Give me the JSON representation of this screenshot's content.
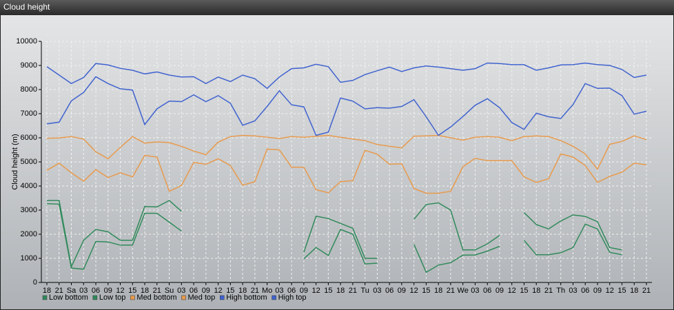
{
  "chart_data": {
    "type": "line",
    "title": "Cloud height",
    "ylabel": "Cloud height (m)",
    "categories": [
      "18",
      "21",
      "Sa",
      "03",
      "06",
      "09",
      "12",
      "15",
      "18",
      "21",
      "Su",
      "03",
      "06",
      "09",
      "12",
      "15",
      "18",
      "21",
      "Mo",
      "03",
      "06",
      "09",
      "12",
      "15",
      "18",
      "21",
      "Tu",
      "03",
      "06",
      "09",
      "12",
      "15",
      "18",
      "21",
      "We",
      "03",
      "06",
      "09",
      "12",
      "15",
      "18",
      "21",
      "Th",
      "03",
      "06",
      "09",
      "12",
      "15",
      "18",
      "21"
    ],
    "ylim": [
      0,
      10000
    ],
    "yticks": [
      0,
      1000,
      2000,
      3000,
      4000,
      5000,
      6000,
      7000,
      8000,
      9000,
      10000
    ],
    "grid": true,
    "legend": "bottom-left",
    "series": [
      {
        "name": "Low bottom",
        "color": "#2f8a5a",
        "values": [
          3270,
          3250,
          600,
          550,
          1700,
          1680,
          1550,
          1550,
          2870,
          2870,
          2500,
          2130,
          null,
          null,
          null,
          null,
          null,
          null,
          null,
          null,
          null,
          980,
          1450,
          1120,
          2200,
          2000,
          770,
          800,
          null,
          null,
          1580,
          420,
          720,
          820,
          1130,
          1140,
          1300,
          1500,
          null,
          1750,
          1150,
          1150,
          1230,
          1450,
          2420,
          2220,
          1250,
          1150,
          null,
          null
        ]
      },
      {
        "name": "Low top",
        "color": "#2f8a5a",
        "values": [
          3400,
          3400,
          650,
          1750,
          2200,
          2100,
          1750,
          1750,
          3150,
          3130,
          3400,
          2950,
          null,
          null,
          null,
          null,
          null,
          null,
          null,
          null,
          null,
          1250,
          2750,
          2650,
          2450,
          2250,
          1000,
          1000,
          null,
          null,
          2620,
          3230,
          3300,
          3000,
          1350,
          1350,
          1600,
          1950,
          null,
          2900,
          2400,
          2220,
          2550,
          2800,
          2740,
          2520,
          1450,
          1350,
          null,
          null
        ]
      },
      {
        "name": "Med bottom",
        "color": "#e89a4c",
        "values": [
          4650,
          4950,
          4550,
          4200,
          4680,
          4350,
          4550,
          4380,
          5270,
          5200,
          3780,
          4020,
          4980,
          4900,
          5130,
          4850,
          4030,
          4180,
          5530,
          5500,
          4780,
          4780,
          3850,
          3720,
          4180,
          4220,
          5480,
          5320,
          4900,
          4920,
          3900,
          3700,
          3700,
          3780,
          4800,
          5150,
          5050,
          5050,
          5050,
          4380,
          4150,
          4300,
          5330,
          5200,
          4850,
          4150,
          4400,
          4570,
          4950,
          4880
        ]
      },
      {
        "name": "Med top",
        "color": "#e89a4c",
        "values": [
          5980,
          5990,
          6050,
          5950,
          5420,
          5130,
          5600,
          6050,
          5780,
          5830,
          5800,
          5650,
          5450,
          5300,
          5820,
          6050,
          6100,
          6080,
          6020,
          5970,
          6050,
          6020,
          6060,
          6100,
          6020,
          5950,
          5880,
          5720,
          5650,
          5580,
          6070,
          6080,
          6100,
          6000,
          5900,
          6020,
          6050,
          6020,
          5880,
          6050,
          6080,
          6050,
          5880,
          5650,
          5330,
          4700,
          5730,
          5850,
          6080,
          5920
        ]
      },
      {
        "name": "High bottom",
        "color": "#3f62cf",
        "values": [
          6580,
          6650,
          7530,
          7880,
          8530,
          8250,
          8030,
          7980,
          6550,
          7200,
          7520,
          7500,
          7780,
          7500,
          7750,
          7430,
          6520,
          6700,
          7300,
          7950,
          7370,
          7280,
          6100,
          6230,
          7650,
          7520,
          7200,
          7250,
          7230,
          7300,
          7580,
          6870,
          6100,
          6450,
          6880,
          7350,
          7620,
          7250,
          6630,
          6350,
          7020,
          6870,
          6800,
          7380,
          8250,
          8050,
          8060,
          7750,
          6980,
          7100
        ]
      },
      {
        "name": "High top",
        "color": "#3f62cf",
        "values": [
          8950,
          8600,
          8250,
          8500,
          9080,
          9020,
          8880,
          8800,
          8650,
          8730,
          8600,
          8520,
          8530,
          8250,
          8520,
          8330,
          8600,
          8450,
          8050,
          8520,
          8870,
          8900,
          9050,
          8950,
          8300,
          8380,
          8620,
          8780,
          8930,
          8750,
          8900,
          8980,
          8930,
          8870,
          8800,
          8870,
          9100,
          9080,
          9030,
          9030,
          8800,
          8900,
          9020,
          9030,
          9100,
          9030,
          9000,
          8830,
          8500,
          8600
        ]
      }
    ]
  }
}
